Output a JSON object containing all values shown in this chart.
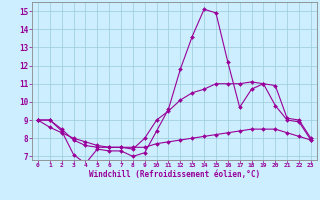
{
  "xlabel": "Windchill (Refroidissement éolien,°C)",
  "background_color": "#cceeff",
  "grid_color": "#99ccdd",
  "line_color": "#990099",
  "hours": [
    0,
    1,
    2,
    3,
    4,
    5,
    6,
    7,
    8,
    9,
    10,
    11,
    12,
    13,
    14,
    15,
    16,
    17,
    18,
    19,
    20,
    21,
    22,
    23
  ],
  "series1": [
    9,
    9,
    8.4,
    7.1,
    6.6,
    7.4,
    7.3,
    7.3,
    7.0,
    7.2,
    8.4,
    9.6,
    11.8,
    13.6,
    15.1,
    14.9,
    12.2,
    9.7,
    10.7,
    11.0,
    9.8,
    9.0,
    8.9,
    7.9
  ],
  "series2": [
    9,
    9,
    8.5,
    7.9,
    7.6,
    7.5,
    7.5,
    7.5,
    7.4,
    8.0,
    9.0,
    9.5,
    10.1,
    10.5,
    10.7,
    11.0,
    11.0,
    11.0,
    11.1,
    11.0,
    10.9,
    9.1,
    9.0,
    8.0
  ],
  "series3": [
    9,
    8.6,
    8.3,
    8.0,
    7.8,
    7.6,
    7.5,
    7.5,
    7.5,
    7.5,
    7.7,
    7.8,
    7.9,
    8.0,
    8.1,
    8.2,
    8.3,
    8.4,
    8.5,
    8.5,
    8.5,
    8.3,
    8.1,
    7.9
  ],
  "ylim": [
    6.8,
    15.5
  ],
  "yticks": [
    7,
    8,
    9,
    10,
    11,
    12,
    13,
    14,
    15
  ],
  "markersize": 2.0,
  "linewidth": 0.8
}
